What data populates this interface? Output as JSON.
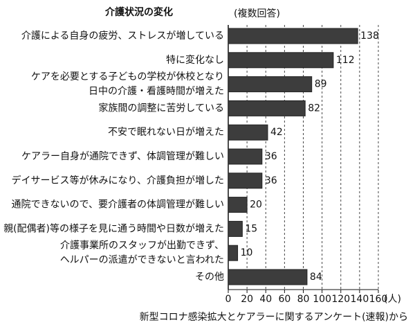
{
  "chart_data": {
    "type": "barh",
    "title": "介護状況の変化",
    "subtitle": "(複数回答)",
    "categories": [
      [
        "介護による自身の疲労、ストレスが増している"
      ],
      [
        "特に変化なし"
      ],
      [
        "ケアを必要とする子どもの学校が休校となり",
        "日中の介護・看護時間が増えた"
      ],
      [
        "家族間の調整に苦労している"
      ],
      [
        "不安で眠れない日が増えた"
      ],
      [
        "ケアラー自身が通院できず、体調管理が難しい"
      ],
      [
        "デイサービス等が休みになり、介護負担が増した"
      ],
      [
        "通院できないので、要介護者の体調管理が難しい"
      ],
      [
        "親(配偶者)等の様子を見に通う時間や日数が増えた"
      ],
      [
        "介護事業所のスタッフが出勤できず、",
        "ヘルパーの派遣ができないと言われた"
      ],
      [
        "その他"
      ]
    ],
    "values": [
      138,
      112,
      89,
      82,
      42,
      36,
      36,
      20,
      15,
      10,
      84
    ],
    "color": "#3d3d3d",
    "xlim": [
      0,
      160
    ],
    "xticks": [
      0,
      20,
      40,
      60,
      80,
      100,
      120,
      140,
      160
    ],
    "xlabel": "(人)",
    "grid": true,
    "note": "新型コロナ感染拡大とケアラーに関するアンケート(速報)から"
  }
}
